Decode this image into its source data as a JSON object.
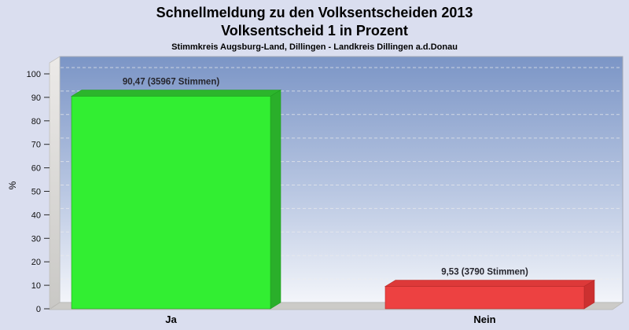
{
  "header": {
    "title": "Schnellmeldung zu den Volksentscheiden 2013",
    "subtitle": "Volksentscheid 1 in Prozent",
    "region": "Stimmkreis Augsburg-Land, Dillingen - Landkreis Dillingen a.d.Donau"
  },
  "chart_data": {
    "type": "bar",
    "style": "3d-vertical-columns",
    "title": "Schnellmeldung zu den Volksentscheiden 2013",
    "subtitle": "Volksentscheid 1 in Prozent",
    "annotation": "Stimmkreis Augsburg-Land, Dillingen - Landkreis Dillingen a.d.Donau",
    "categories": [
      "Ja",
      "Nein"
    ],
    "values": [
      90.47,
      9.53
    ],
    "votes": [
      35967,
      3790
    ],
    "value_labels": [
      "90,47 (35967 Stimmen)",
      "9,53 (3790 Stimmen)"
    ],
    "xlabel": "",
    "ylabel": "%",
    "ylim": [
      0,
      105
    ],
    "yticks": [
      0,
      10,
      20,
      30,
      40,
      50,
      60,
      70,
      80,
      90,
      100
    ],
    "grid": "horizontal-dashed",
    "legend": "none",
    "colors": {
      "page_bg": "#dadeef",
      "wall_top": "#7b95c6",
      "wall_mid": "#b9c7e2",
      "wall_bottom": "#f3f5fa",
      "left_wall_top": "#eceae8",
      "left_wall_bottom": "#c9c8c5",
      "floor": "#cccbc8",
      "gridline": "#ededed",
      "bars": [
        {
          "front": "#32ee32",
          "top": "#2cb52c",
          "side": "#2aaf2a",
          "outline": "#1f9e1f"
        },
        {
          "front": "#ed4141",
          "top": "#dd3939",
          "side": "#cc3030",
          "outline": "#b52a2a"
        }
      ]
    }
  }
}
